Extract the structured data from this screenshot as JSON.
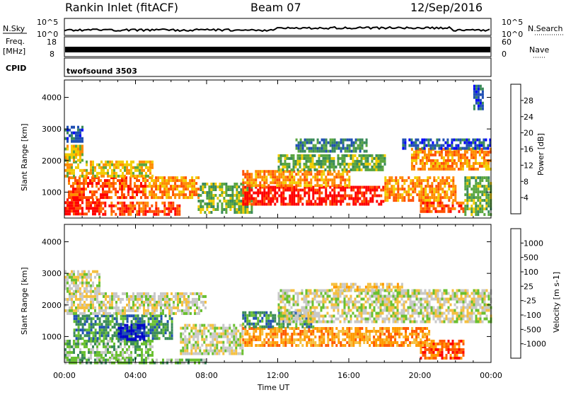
{
  "header": {
    "site": "Rankin Inlet (fitACF)",
    "beam": "Beam 07",
    "date": "12/Sep/2016"
  },
  "summary": {
    "nsky_label": "N.Sky",
    "nsky_ticks": [
      "10^5",
      "10^0"
    ],
    "nsearch_label": "N.Search",
    "nsearch_ticks": [
      "10^5",
      "10^0"
    ],
    "freq_label": "Freq.",
    "freq_unit": "[MHz]",
    "freq_ticks": [
      "18",
      "8"
    ],
    "nave_label": "Nave",
    "nave_ticks": [
      "60",
      "0"
    ],
    "cpid_label": "CPID",
    "cpid_value": "twofsound 3503"
  },
  "chart_data": [
    {
      "type": "heatmap",
      "name": "power",
      "ylabel": "Slant Range [km]",
      "yticks": [
        1000,
        2000,
        3000,
        4000
      ],
      "ylim": [
        180,
        4550
      ],
      "xlim": [
        0,
        24
      ],
      "colorbar_label": "Power [dB]",
      "colorbar_ticks": [
        "28",
        "24",
        "20",
        "16",
        "12",
        "8",
        "4"
      ],
      "colorbar_colors": [
        "#0000ff",
        "#1f4fb4",
        "#3a8a5a",
        "#5aa640",
        "#f2cc00",
        "#ff8c00",
        "#ff5000",
        "#ff0000"
      ],
      "regions": [
        {
          "t0": 0.0,
          "t1": 2.0,
          "r0": 300,
          "r1": 800,
          "level": 7
        },
        {
          "t0": 2.0,
          "t1": 6.5,
          "r0": 300,
          "r1": 700,
          "level": 6
        },
        {
          "t0": 0.2,
          "t1": 4.5,
          "r0": 800,
          "r1": 1500,
          "level": 6
        },
        {
          "t0": 4.5,
          "t1": 7.5,
          "r0": 800,
          "r1": 1500,
          "level": 5
        },
        {
          "t0": 0.0,
          "t1": 5.0,
          "r0": 1500,
          "r1": 2000,
          "level": 4
        },
        {
          "t0": 0.0,
          "t1": 1.0,
          "r0": 2000,
          "r1": 2500,
          "level": 4
        },
        {
          "t0": 0.0,
          "t1": 1.0,
          "r0": 2600,
          "r1": 3100,
          "level": 1
        },
        {
          "t0": 7.5,
          "t1": 10.5,
          "r0": 400,
          "r1": 1300,
          "level": 3
        },
        {
          "t0": 10.0,
          "t1": 18.0,
          "r0": 600,
          "r1": 1200,
          "level": 7
        },
        {
          "t0": 10.0,
          "t1": 16.0,
          "r0": 1200,
          "r1": 1700,
          "level": 5
        },
        {
          "t0": 12.0,
          "t1": 18.0,
          "r0": 1700,
          "r1": 2200,
          "level": 3
        },
        {
          "t0": 18.0,
          "t1": 22.0,
          "r0": 700,
          "r1": 1500,
          "level": 5
        },
        {
          "t0": 20.0,
          "t1": 22.5,
          "r0": 350,
          "r1": 700,
          "level": 6
        },
        {
          "t0": 19.5,
          "t1": 24.0,
          "r0": 1700,
          "r1": 2400,
          "level": 5
        },
        {
          "t0": 19.0,
          "t1": 24.0,
          "r0": 2400,
          "r1": 2700,
          "level": 1
        },
        {
          "t0": 22.5,
          "t1": 24.0,
          "r0": 300,
          "r1": 1500,
          "level": 3
        },
        {
          "t0": 13.0,
          "t1": 17.0,
          "r0": 2300,
          "r1": 2700,
          "level": 2
        },
        {
          "t0": 23.0,
          "t1": 23.5,
          "r0": 3600,
          "r1": 4400,
          "level": 1
        }
      ]
    },
    {
      "type": "heatmap",
      "name": "velocity",
      "ylabel": "Slant Range [km]",
      "yticks": [
        1000,
        2000,
        3000,
        4000
      ],
      "ylim": [
        180,
        4550
      ],
      "xlim": [
        0,
        24
      ],
      "xticks": [
        "00:00",
        "04:00",
        "08:00",
        "12:00",
        "16:00",
        "20:00",
        "00:00"
      ],
      "xlabel": "Time UT",
      "colorbar_label": "Velocity [m s-1]",
      "colorbar_ticks": [
        "1000",
        "500",
        "100",
        "25",
        "-25",
        "-100",
        "-500",
        "-1000"
      ],
      "colorbar_colors": [
        "#ff0000",
        "#ff5a00",
        "#ff9a00",
        "#f5c040",
        "#c8c8c8",
        "#6ac030",
        "#3a8a5a",
        "#1f4fb4",
        "#0000cc"
      ],
      "regions": [
        {
          "t0": 0.0,
          "t1": 5.0,
          "r0": 300,
          "r1": 900,
          "level": 5
        },
        {
          "t0": 0.5,
          "t1": 6.0,
          "r0": 900,
          "r1": 1700,
          "level": 6
        },
        {
          "t0": 3.0,
          "t1": 4.5,
          "r0": 900,
          "r1": 1400,
          "level": 8
        },
        {
          "t0": 0.0,
          "t1": 8.0,
          "r0": 1700,
          "r1": 2400,
          "level": 4
        },
        {
          "t0": 0.0,
          "t1": 2.0,
          "r0": 2400,
          "r1": 3100,
          "level": 4
        },
        {
          "t0": 6.5,
          "t1": 10.0,
          "r0": 500,
          "r1": 1400,
          "level": 4
        },
        {
          "t0": 10.0,
          "t1": 17.0,
          "r0": 700,
          "r1": 1300,
          "level": 2
        },
        {
          "t0": 10.0,
          "t1": 14.0,
          "r0": 1300,
          "r1": 1800,
          "level": 6
        },
        {
          "t0": 12.0,
          "t1": 24.0,
          "r0": 1500,
          "r1": 2500,
          "level": 4
        },
        {
          "t0": 15.0,
          "t1": 19.0,
          "r0": 2500,
          "r1": 2700,
          "level": 3
        },
        {
          "t0": 20.0,
          "t1": 22.5,
          "r0": 300,
          "r1": 900,
          "level": 1
        },
        {
          "t0": 17.0,
          "t1": 20.5,
          "r0": 700,
          "r1": 1300,
          "level": 2
        },
        {
          "t0": 0.0,
          "t1": 8.0,
          "r0": 180,
          "r1": 300,
          "level": 5
        }
      ]
    }
  ]
}
